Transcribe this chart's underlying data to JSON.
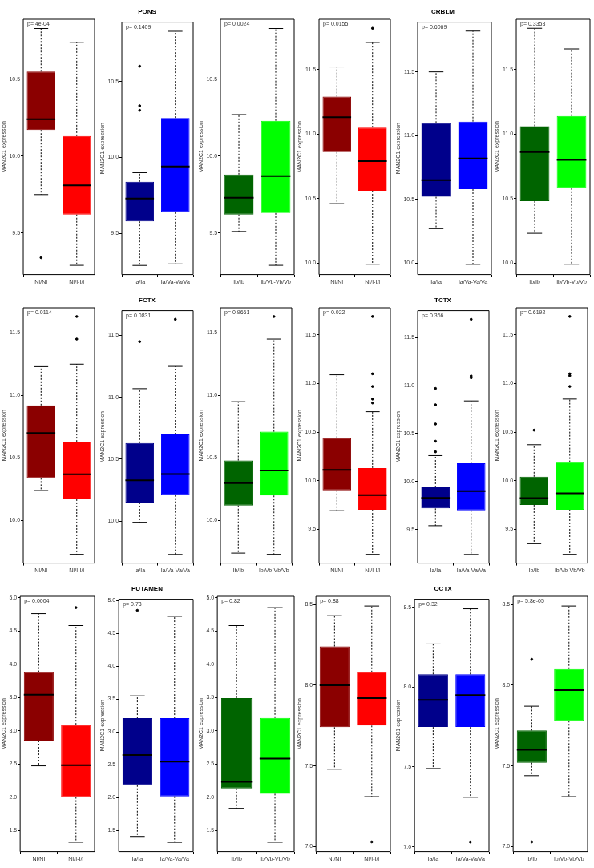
{
  "chart_data": [
    {
      "type": "box",
      "ylabel": "MAN2C1 expression",
      "categories": [
        "NI/NI",
        "NI/I-I/I"
      ],
      "colors": [
        "#8b0000",
        "#ff0000"
      ],
      "ylim": [
        9.23,
        10.89
      ],
      "yticks": [
        9.5,
        {
          "value": 10,
          "label": "10.0"
        },
        10.5
      ],
      "annotations": [
        "p= 4e-04"
      ],
      "boxes": [
        {
          "low": 9.75,
          "q1": 10.17,
          "median": 10.24,
          "q3": 10.55,
          "high": 10.83,
          "outliers": [
            9.34
          ]
        },
        {
          "low": 9.29,
          "q1": 9.62,
          "median": 9.81,
          "q3": 10.13,
          "high": 10.74
        }
      ]
    },
    {
      "type": "box",
      "title": "PONS",
      "ylabel": "MAN2C1 expression",
      "categories": [
        "Ia/Ia",
        "Ia/Va-Va/Va"
      ],
      "colors": [
        "#00008b",
        "#0000ff"
      ],
      "ylim": [
        9.23,
        10.89
      ],
      "yticks": [
        9.5,
        {
          "value": 10,
          "label": "10.0"
        },
        10.5
      ],
      "annotations": [
        "p= 0.1409"
      ],
      "boxes": [
        {
          "low": 9.29,
          "q1": 9.58,
          "median": 9.73,
          "q3": 9.84,
          "high": 9.9,
          "outliers": [
            10.6,
            10.34,
            10.31
          ]
        },
        {
          "low": 9.3,
          "q1": 9.64,
          "median": 9.94,
          "q3": 10.26,
          "high": 10.83
        }
      ]
    },
    {
      "type": "box",
      "ylabel": "MAN2C1 expression",
      "categories": [
        "Ib/Ib",
        "Ib/Vb-Vb/Vb"
      ],
      "colors": [
        "#006400",
        "#00ff00"
      ],
      "ylim": [
        9.23,
        10.89
      ],
      "yticks": [
        9.5,
        {
          "value": 10,
          "label": "10.0"
        },
        10.5
      ],
      "annotations": [
        "p= 0.0024"
      ],
      "boxes": [
        {
          "low": 9.51,
          "q1": 9.62,
          "median": 9.73,
          "q3": 9.88,
          "high": 10.27
        },
        {
          "low": 9.29,
          "q1": 9.63,
          "median": 9.87,
          "q3": 10.23,
          "high": 10.83
        }
      ]
    },
    {
      "type": "box",
      "ylabel": "MAN2C1 expression",
      "categories": [
        "NI/NI",
        "NI/I-I/I"
      ],
      "colors": [
        "#8b0000",
        "#ff0000"
      ],
      "ylim": [
        9.91,
        11.89
      ],
      "yticks": [
        {
          "value": 10,
          "label": "10.0"
        },
        10.5,
        {
          "value": 11,
          "label": "11.0"
        },
        11.5
      ],
      "annotations": [
        "p= 0.0155"
      ],
      "boxes": [
        {
          "low": 10.46,
          "q1": 10.86,
          "median": 11.13,
          "q3": 11.29,
          "high": 11.52
        },
        {
          "low": 9.99,
          "q1": 10.56,
          "median": 10.79,
          "q3": 11.05,
          "high": 11.71,
          "outliers": [
            11.82
          ]
        }
      ]
    },
    {
      "type": "box",
      "title": "CRBLM",
      "ylabel": "MAN2C1 expression",
      "categories": [
        "Ia/Ia",
        "Ia/Va-Va/Va"
      ],
      "colors": [
        "#00008b",
        "#0000ff"
      ],
      "ylim": [
        9.91,
        11.89
      ],
      "yticks": [
        {
          "value": 10,
          "label": "10.0"
        },
        10.5,
        {
          "value": 11,
          "label": "11.0"
        },
        11.5
      ],
      "annotations": [
        "p= 0.6069"
      ],
      "boxes": [
        {
          "low": 10.27,
          "q1": 10.52,
          "median": 10.65,
          "q3": 11.1,
          "high": 11.5
        },
        {
          "low": 9.99,
          "q1": 10.58,
          "median": 10.82,
          "q3": 11.11,
          "high": 11.82
        }
      ]
    },
    {
      "type": "box",
      "ylabel": "MAN2C1 expression",
      "categories": [
        "Ib/Ib",
        "Ib/Vb-Vb/Vb"
      ],
      "colors": [
        "#006400",
        "#00ff00"
      ],
      "ylim": [
        9.91,
        11.89
      ],
      "yticks": [
        {
          "value": 10,
          "label": "10.0"
        },
        10.5,
        {
          "value": 11,
          "label": "11.0"
        },
        11.5
      ],
      "annotations": [
        "p= 0.3353"
      ],
      "boxes": [
        {
          "low": 10.23,
          "q1": 10.48,
          "median": 10.86,
          "q3": 11.06,
          "high": 11.82
        },
        {
          "low": 9.99,
          "q1": 10.58,
          "median": 10.8,
          "q3": 11.14,
          "high": 11.66
        }
      ]
    },
    {
      "type": "box",
      "ylabel": "MAN2C1 expression",
      "categories": [
        "NI/NI",
        "NI/I-I/I"
      ],
      "colors": [
        "#8b0000",
        "#ff0000"
      ],
      "ylim": [
        9.66,
        11.7
      ],
      "yticks": [
        {
          "value": 10,
          "label": "10.0"
        },
        10.5,
        {
          "value": 11,
          "label": "11.0"
        },
        11.5
      ],
      "annotations": [
        "p= 0.0114"
      ],
      "boxes": [
        {
          "low": 10.24,
          "q1": 10.34,
          "median": 10.7,
          "q3": 10.92,
          "high": 11.23
        },
        {
          "low": 9.73,
          "q1": 10.17,
          "median": 10.37,
          "q3": 10.63,
          "high": 11.25,
          "outliers": [
            11.63,
            11.45
          ]
        }
      ]
    },
    {
      "type": "box",
      "title": "FCTX",
      "ylabel": "MAN2C1 expression",
      "categories": [
        "Ia/Ia",
        "Ia/Va-Va/Va"
      ],
      "colors": [
        "#00008b",
        "#0000ff"
      ],
      "ylim": [
        9.66,
        11.7
      ],
      "yticks": [
        {
          "value": 10,
          "label": "10.0"
        },
        10.5,
        {
          "value": 11,
          "label": "11.0"
        },
        11.5
      ],
      "annotations": [
        "p= 0.0831"
      ],
      "boxes": [
        {
          "low": 9.99,
          "q1": 10.15,
          "median": 10.33,
          "q3": 10.63,
          "high": 11.07,
          "outliers": [
            11.45
          ]
        },
        {
          "low": 9.73,
          "q1": 10.21,
          "median": 10.38,
          "q3": 10.7,
          "high": 11.25,
          "outliers": [
            11.63
          ]
        }
      ]
    },
    {
      "type": "box",
      "ylabel": "MAN2C1 expression",
      "categories": [
        "Ib/Ib",
        "Ib/Vb-Vb/Vb"
      ],
      "colors": [
        "#006400",
        "#00ff00"
      ],
      "ylim": [
        9.66,
        11.7
      ],
      "yticks": [
        {
          "value": 10,
          "label": "10.0"
        },
        10.5,
        {
          "value": 11,
          "label": "11.0"
        },
        11.5
      ],
      "annotations": [
        "p= 0.9661"
      ],
      "boxes": [
        {
          "low": 9.74,
          "q1": 10.12,
          "median": 10.3,
          "q3": 10.48,
          "high": 10.95
        },
        {
          "low": 9.73,
          "q1": 10.2,
          "median": 10.4,
          "q3": 10.71,
          "high": 11.45,
          "outliers": [
            11.63
          ]
        }
      ]
    },
    {
      "type": "box",
      "ylabel": "MAN2C1 expression",
      "categories": [
        "NI/NI",
        "NI/I-I/I"
      ],
      "colors": [
        "#8b0000",
        "#ff0000"
      ],
      "ylim": [
        9.15,
        11.78
      ],
      "yticks": [
        9.5,
        {
          "value": 10,
          "label": "10.0"
        },
        10.5,
        {
          "value": 11,
          "label": "11.0"
        },
        11.5
      ],
      "annotations": [
        "p= 0.022"
      ],
      "boxes": [
        {
          "low": 9.69,
          "q1": 9.9,
          "median": 10.11,
          "q3": 10.44,
          "high": 11.09
        },
        {
          "low": 9.24,
          "q1": 9.7,
          "median": 9.85,
          "q3": 10.13,
          "high": 10.71,
          "outliers": [
            11.69,
            11.1,
            10.97,
            10.84,
            10.8
          ]
        }
      ]
    },
    {
      "type": "box",
      "title": "TCTX",
      "ylabel": "MAN2C1 expression",
      "categories": [
        "Ia/Ia",
        "Ia/Va-Va/Va"
      ],
      "colors": [
        "#00008b",
        "#0000ff"
      ],
      "ylim": [
        9.15,
        11.78
      ],
      "yticks": [
        9.5,
        {
          "value": 10,
          "label": "10.0"
        },
        10.5,
        {
          "value": 11,
          "label": "11.0"
        },
        11.5
      ],
      "annotations": [
        "p= 0.366"
      ],
      "boxes": [
        {
          "low": 9.54,
          "q1": 9.72,
          "median": 9.83,
          "q3": 9.94,
          "high": 10.27,
          "outliers": [
            10.97,
            10.8,
            10.6,
            10.42,
            10.31
          ]
        },
        {
          "low": 9.24,
          "q1": 9.7,
          "median": 9.9,
          "q3": 10.19,
          "high": 10.84,
          "outliers": [
            11.69,
            11.1,
            11.08
          ]
        }
      ]
    },
    {
      "type": "box",
      "ylabel": "MAN2C1 expression",
      "categories": [
        "Ib/Ib",
        "Ib/Vb-Vb/Vb"
      ],
      "colors": [
        "#006400",
        "#00ff00"
      ],
      "ylim": [
        9.15,
        11.78
      ],
      "yticks": [
        9.5,
        {
          "value": 10,
          "label": "10.0"
        },
        10.5,
        {
          "value": 11,
          "label": "11.0"
        },
        11.5
      ],
      "annotations": [
        "p= 0.6192"
      ],
      "boxes": [
        {
          "low": 9.35,
          "q1": 9.75,
          "median": 9.82,
          "q3": 10.04,
          "high": 10.37,
          "outliers": [
            10.52
          ]
        },
        {
          "low": 9.24,
          "q1": 9.7,
          "median": 9.87,
          "q3": 10.19,
          "high": 10.84,
          "outliers": [
            11.69,
            11.1,
            11.08,
            10.97
          ]
        }
      ]
    },
    {
      "type": "box",
      "ylabel": "MAN2C1 expression",
      "categories": [
        "NI/NI",
        "NI/I-I/I"
      ],
      "colors": [
        "#8b0000",
        "#ff0000"
      ],
      "ylim": [
        1.18,
        5.02
      ],
      "yticks": [
        1.5,
        {
          "value": 2,
          "label": "2.0"
        },
        2.5,
        {
          "value": 3,
          "label": "3.0"
        },
        3.5,
        {
          "value": 4,
          "label": "4.0"
        },
        4.5,
        {
          "value": 5,
          "label": "5.0"
        }
      ],
      "annotations": [
        "p= 0.0004"
      ],
      "boxes": [
        {
          "low": 2.47,
          "q1": 2.85,
          "median": 3.54,
          "q3": 3.88,
          "high": 4.76
        },
        {
          "low": 1.32,
          "q1": 2.0,
          "median": 2.48,
          "q3": 3.09,
          "high": 4.58,
          "outliers": [
            4.85
          ]
        }
      ]
    },
    {
      "type": "box",
      "title": "PUTAMEN",
      "ylabel": "MAN2C1 expression",
      "categories": [
        "Ia/Ia",
        "Ia/Va-Va/Va"
      ],
      "colors": [
        "#00008b",
        "#0000ff"
      ],
      "ylim": [
        1.18,
        5.02
      ],
      "yticks": [
        1.5,
        {
          "value": 2,
          "label": "2.0"
        },
        2.5,
        {
          "value": 3,
          "label": "3.0"
        },
        3.5,
        {
          "value": 4,
          "label": "4.0"
        },
        4.5,
        {
          "value": 5,
          "label": "5.0"
        }
      ],
      "annotations": [
        "p= 0.73"
      ],
      "boxes": [
        {
          "low": 1.41,
          "q1": 2.19,
          "median": 2.65,
          "q3": 3.21,
          "high": 3.55,
          "outliers": [
            4.85
          ]
        },
        {
          "low": 1.32,
          "q1": 2.02,
          "median": 2.55,
          "q3": 3.21,
          "high": 4.76
        }
      ]
    },
    {
      "type": "box",
      "ylabel": "MAN2C1 expression",
      "categories": [
        "Ib/Ib",
        "Ib/Vb-Vb/Vb"
      ],
      "colors": [
        "#006400",
        "#00ff00"
      ],
      "ylim": [
        1.18,
        5.02
      ],
      "yticks": [
        1.5,
        {
          "value": 2,
          "label": "2.0"
        },
        2.5,
        {
          "value": 3,
          "label": "3.0"
        },
        3.5,
        {
          "value": 4,
          "label": "4.0"
        },
        4.5,
        {
          "value": 5,
          "label": "5.0"
        }
      ],
      "annotations": [
        "p= 0.82"
      ],
      "boxes": [
        {
          "low": 1.83,
          "q1": 2.13,
          "median": 2.23,
          "q3": 3.49,
          "high": 4.58
        },
        {
          "low": 1.32,
          "q1": 2.05,
          "median": 2.58,
          "q3": 3.19,
          "high": 4.85
        }
      ]
    },
    {
      "type": "box",
      "ylabel": "MAN2C1 expression",
      "categories": [
        "NI/NI",
        "NI/I-I/I"
      ],
      "colors": [
        "#8b0000",
        "#ff0000"
      ],
      "ylim": [
        6.97,
        8.55
      ],
      "yticks": [
        {
          "value": 7,
          "label": "7.0"
        },
        7.5,
        {
          "value": 8,
          "label": "8.0"
        },
        8.5
      ],
      "annotations": [
        "p= 0.88"
      ],
      "boxes": [
        {
          "low": 7.48,
          "q1": 7.74,
          "median": 8.0,
          "q3": 8.24,
          "high": 8.43
        },
        {
          "low": 7.31,
          "q1": 7.75,
          "median": 7.92,
          "q3": 8.08,
          "high": 8.49,
          "outliers": [
            7.03
          ]
        }
      ]
    },
    {
      "type": "box",
      "title": "OCTX",
      "ylabel": "MAN2C1 expression",
      "categories": [
        "Ia/Ia",
        "Ia/Va-Va/Va"
      ],
      "colors": [
        "#00008b",
        "#0000ff"
      ],
      "ylim": [
        6.97,
        8.55
      ],
      "yticks": [
        {
          "value": 7,
          "label": "7.0"
        },
        7.5,
        {
          "value": 8,
          "label": "8.0"
        },
        8.5
      ],
      "annotations": [
        "p= 0.32"
      ],
      "boxes": [
        {
          "low": 7.49,
          "q1": 7.75,
          "median": 7.92,
          "q3": 8.08,
          "high": 8.27
        },
        {
          "low": 7.31,
          "q1": 7.75,
          "median": 7.95,
          "q3": 8.08,
          "high": 8.49,
          "outliers": [
            7.03
          ]
        }
      ]
    },
    {
      "type": "box",
      "ylabel": "MAN2C1 expression",
      "categories": [
        "Ib/Ib",
        "Ib/Vb-Vb/Vb"
      ],
      "colors": [
        "#006400",
        "#00ff00"
      ],
      "ylim": [
        6.97,
        8.55
      ],
      "yticks": [
        {
          "value": 7,
          "label": "7.0"
        },
        7.5,
        {
          "value": 8,
          "label": "8.0"
        },
        8.5
      ],
      "annotations": [
        "p= 5.8e-05"
      ],
      "boxes": [
        {
          "low": 7.44,
          "q1": 7.52,
          "median": 7.6,
          "q3": 7.72,
          "high": 7.87,
          "outliers": [
            8.16,
            7.03
          ]
        },
        {
          "low": 7.31,
          "q1": 7.78,
          "median": 7.97,
          "q3": 8.1,
          "high": 8.49
        }
      ]
    }
  ]
}
